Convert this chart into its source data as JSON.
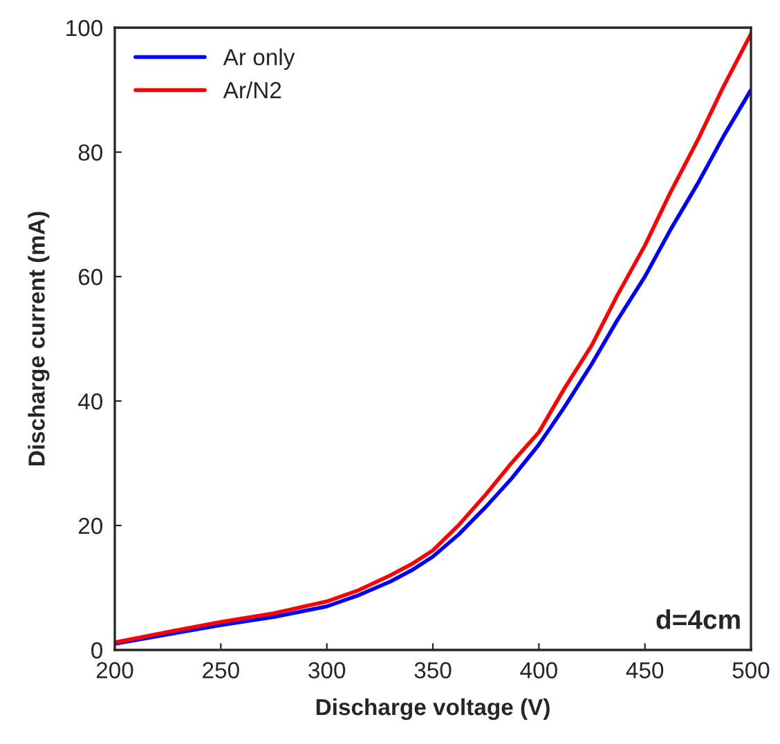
{
  "chart_data": {
    "type": "line",
    "xlabel": "Discharge voltage (V)",
    "ylabel": "Discharge current (mA)",
    "x": [
      200,
      225,
      250,
      275,
      300,
      315,
      330,
      340,
      350,
      362,
      375,
      387,
      400,
      412,
      425,
      437,
      450,
      462,
      475,
      487,
      500
    ],
    "series": [
      {
        "name": "Ar only",
        "color": "#0000ff",
        "values": [
          1,
          2.5,
          4,
          5.3,
          7,
          8.8,
          11,
          12.8,
          15,
          18.5,
          23,
          27.5,
          33,
          39,
          46,
          53,
          60,
          67.5,
          75,
          82.5,
          90
        ]
      },
      {
        "name": "Ar/N2",
        "color": "#ff0000",
        "values": [
          1.2,
          2.9,
          4.5,
          5.9,
          7.8,
          9.6,
          12,
          13.8,
          16,
          20,
          25,
          30,
          35,
          42,
          49,
          57,
          65,
          73.5,
          82,
          90.5,
          99
        ]
      }
    ],
    "xlim": [
      200,
      500
    ],
    "xticks": [
      200,
      250,
      300,
      350,
      400,
      450,
      500
    ],
    "ylim": [
      0,
      100
    ],
    "yticks": [
      0,
      20,
      40,
      60,
      80,
      100
    ],
    "grid": false,
    "legend": "top left",
    "marker": "none",
    "line_style": "solid",
    "annotations": [
      "d=4cm"
    ]
  }
}
